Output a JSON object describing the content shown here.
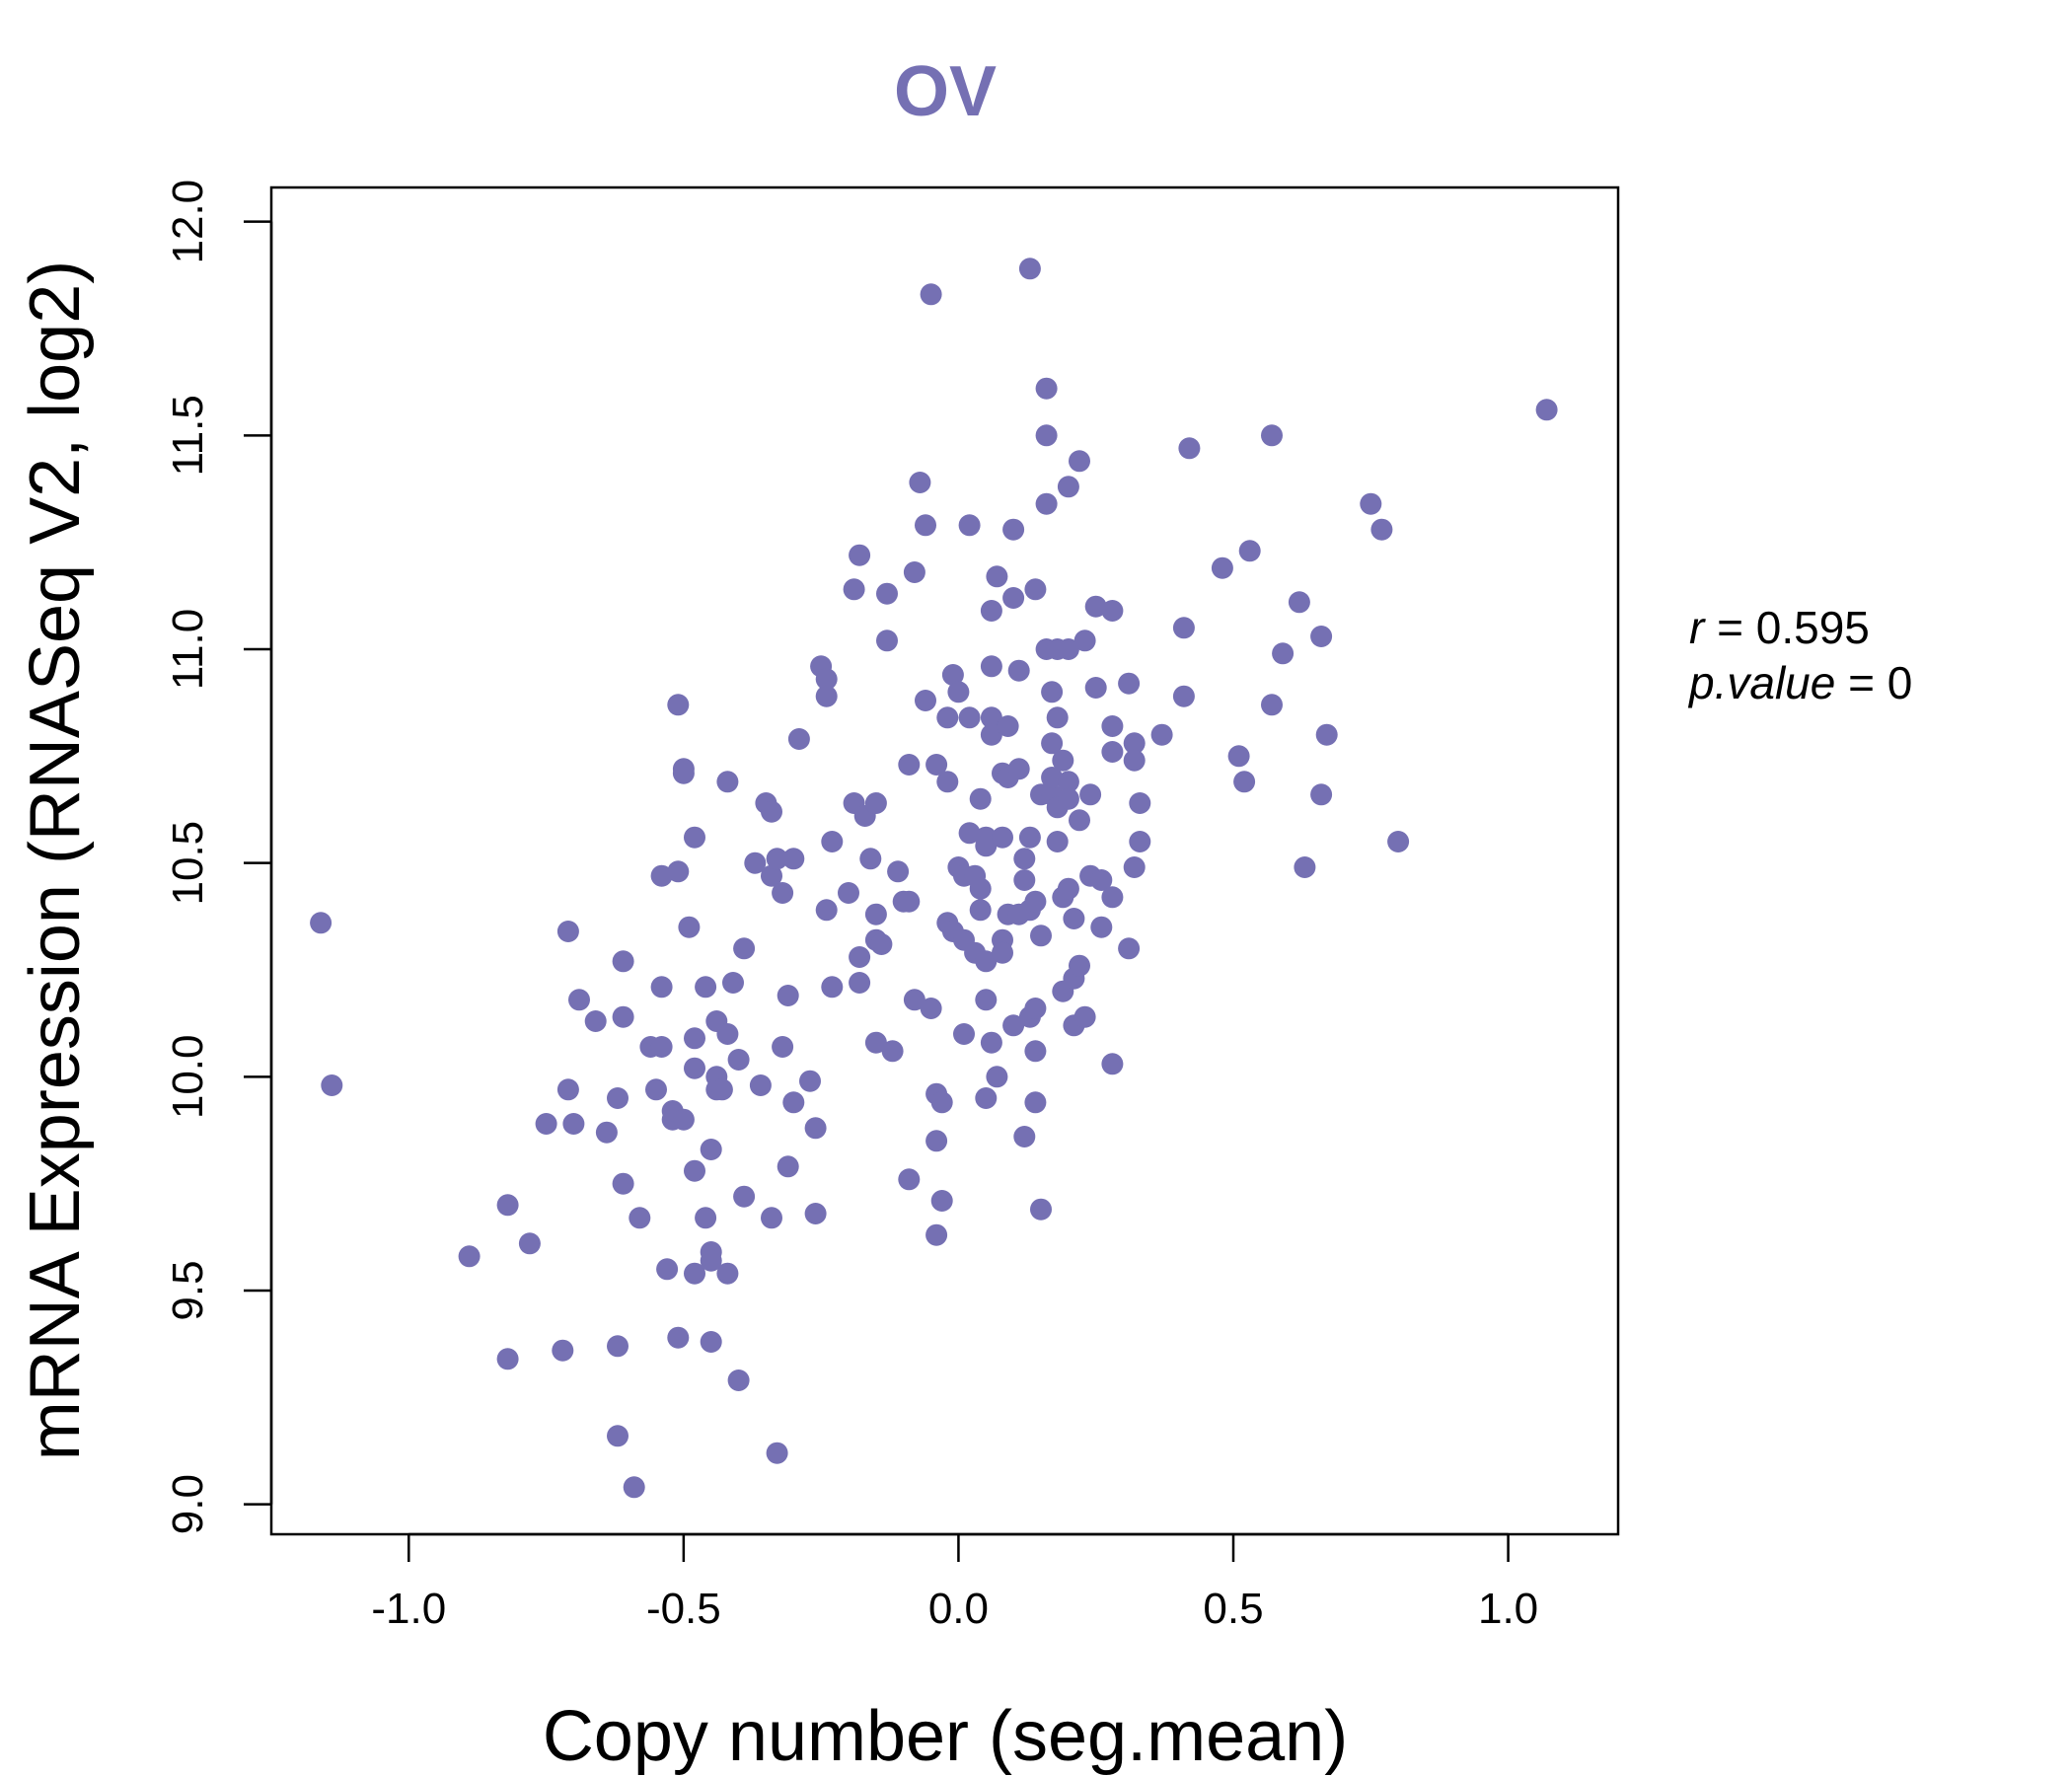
{
  "chart_data": {
    "type": "scatter",
    "title": "OV",
    "xlabel": "Copy number (seg.mean)",
    "ylabel": "mRNA Expression (RNASeq V2, log2)",
    "xlim": [
      -1.25,
      1.2
    ],
    "ylim": [
      8.93,
      12.08
    ],
    "xticks": [
      -1.0,
      -0.5,
      0.0,
      0.5,
      1.0
    ],
    "xtick_labels": [
      "-1.0",
      "-0.5",
      "0.0",
      "0.5",
      "1.0"
    ],
    "yticks": [
      9.0,
      9.5,
      10.0,
      10.5,
      11.0,
      11.5,
      12.0
    ],
    "ytick_labels": [
      "9.0",
      "9.5",
      "10.0",
      "10.5",
      "11.0",
      "11.5",
      "12.0"
    ],
    "stats": {
      "r_label": "r",
      "r_value": "0.595",
      "p_label": "p.value",
      "p_value": "0"
    },
    "color": "#7570b3",
    "points": [
      [
        -1.16,
        10.36
      ],
      [
        -1.14,
        9.98
      ],
      [
        -0.89,
        9.58
      ],
      [
        -0.82,
        9.34
      ],
      [
        -0.82,
        9.7
      ],
      [
        -0.78,
        9.61
      ],
      [
        -0.75,
        9.89
      ],
      [
        -0.72,
        9.36
      ],
      [
        -0.71,
        10.34
      ],
      [
        -0.71,
        9.97
      ],
      [
        -0.7,
        9.89
      ],
      [
        -0.69,
        10.18
      ],
      [
        -0.66,
        10.13
      ],
      [
        -0.64,
        9.87
      ],
      [
        -0.62,
        9.16
      ],
      [
        -0.62,
        9.37
      ],
      [
        -0.62,
        9.95
      ],
      [
        -0.61,
        10.27
      ],
      [
        -0.61,
        10.14
      ],
      [
        -0.61,
        9.75
      ],
      [
        -0.59,
        9.04
      ],
      [
        -0.58,
        9.67
      ],
      [
        -0.56,
        10.07
      ],
      [
        -0.55,
        9.97
      ],
      [
        -0.54,
        10.07
      ],
      [
        -0.54,
        10.21
      ],
      [
        -0.54,
        10.47
      ],
      [
        -0.53,
        9.55
      ],
      [
        -0.52,
        9.9
      ],
      [
        -0.52,
        9.92
      ],
      [
        -0.51,
        9.39
      ],
      [
        -0.51,
        10.87
      ],
      [
        -0.51,
        10.48
      ],
      [
        -0.5,
        10.72
      ],
      [
        -0.5,
        10.71
      ],
      [
        -0.5,
        9.9
      ],
      [
        -0.49,
        10.35
      ],
      [
        -0.48,
        10.56
      ],
      [
        -0.48,
        10.09
      ],
      [
        -0.48,
        10.02
      ],
      [
        -0.48,
        9.78
      ],
      [
        -0.48,
        9.54
      ],
      [
        -0.46,
        10.21
      ],
      [
        -0.46,
        9.67
      ],
      [
        -0.45,
        9.38
      ],
      [
        -0.45,
        9.59
      ],
      [
        -0.45,
        9.57
      ],
      [
        -0.45,
        9.83
      ],
      [
        -0.44,
        10.0
      ],
      [
        -0.44,
        9.97
      ],
      [
        -0.44,
        10.13
      ],
      [
        -0.43,
        9.97
      ],
      [
        -0.42,
        10.1
      ],
      [
        -0.42,
        10.69
      ],
      [
        -0.42,
        9.54
      ],
      [
        -0.41,
        10.22
      ],
      [
        -0.4,
        9.29
      ],
      [
        -0.4,
        10.04
      ],
      [
        -0.39,
        10.3
      ],
      [
        -0.39,
        9.72
      ],
      [
        -0.37,
        10.5
      ],
      [
        -0.36,
        9.98
      ],
      [
        -0.35,
        10.64
      ],
      [
        -0.34,
        10.62
      ],
      [
        -0.34,
        10.47
      ],
      [
        -0.34,
        9.67
      ],
      [
        -0.33,
        9.12
      ],
      [
        -0.33,
        10.51
      ],
      [
        -0.32,
        10.43
      ],
      [
        -0.32,
        10.07
      ],
      [
        -0.31,
        9.79
      ],
      [
        -0.31,
        10.19
      ],
      [
        -0.3,
        10.51
      ],
      [
        -0.3,
        9.94
      ],
      [
        -0.29,
        10.79
      ],
      [
        -0.27,
        9.99
      ],
      [
        -0.26,
        9.88
      ],
      [
        -0.26,
        9.68
      ],
      [
        -0.25,
        10.96
      ],
      [
        -0.24,
        10.93
      ],
      [
        -0.24,
        10.89
      ],
      [
        -0.24,
        10.39
      ],
      [
        -0.23,
        10.55
      ],
      [
        -0.23,
        10.21
      ],
      [
        -0.2,
        10.43
      ],
      [
        -0.19,
        10.64
      ],
      [
        -0.19,
        11.14
      ],
      [
        -0.18,
        10.28
      ],
      [
        -0.18,
        10.22
      ],
      [
        -0.18,
        11.22
      ],
      [
        -0.17,
        10.61
      ],
      [
        -0.16,
        10.51
      ],
      [
        -0.15,
        10.64
      ],
      [
        -0.15,
        10.38
      ],
      [
        -0.15,
        10.32
      ],
      [
        -0.15,
        10.08
      ],
      [
        -0.14,
        10.31
      ],
      [
        -0.13,
        11.02
      ],
      [
        -0.13,
        11.13
      ],
      [
        -0.12,
        10.06
      ],
      [
        -0.11,
        10.48
      ],
      [
        -0.1,
        10.41
      ],
      [
        -0.09,
        10.73
      ],
      [
        -0.09,
        10.41
      ],
      [
        -0.09,
        9.76
      ],
      [
        -0.08,
        11.18
      ],
      [
        -0.08,
        10.18
      ],
      [
        -0.07,
        11.39
      ],
      [
        -0.06,
        10.88
      ],
      [
        -0.06,
        11.29
      ],
      [
        -0.05,
        11.83
      ],
      [
        -0.05,
        10.16
      ],
      [
        -0.04,
        9.96
      ],
      [
        -0.04,
        9.85
      ],
      [
        -0.04,
        9.63
      ],
      [
        -0.04,
        10.73
      ],
      [
        -0.03,
        9.94
      ],
      [
        -0.03,
        9.71
      ],
      [
        -0.02,
        10.84
      ],
      [
        -0.02,
        10.69
      ],
      [
        -0.02,
        10.36
      ],
      [
        -0.01,
        10.94
      ],
      [
        -0.01,
        10.34
      ],
      [
        0.0,
        10.49
      ],
      [
        0.0,
        10.9
      ],
      [
        0.01,
        10.47
      ],
      [
        0.01,
        10.32
      ],
      [
        0.01,
        10.1
      ],
      [
        0.02,
        10.57
      ],
      [
        0.02,
        11.29
      ],
      [
        0.02,
        10.84
      ],
      [
        0.03,
        10.29
      ],
      [
        0.03,
        10.47
      ],
      [
        0.04,
        10.39
      ],
      [
        0.04,
        10.65
      ],
      [
        0.04,
        10.44
      ],
      [
        0.05,
        10.56
      ],
      [
        0.05,
        10.54
      ],
      [
        0.05,
        10.27
      ],
      [
        0.05,
        10.18
      ],
      [
        0.05,
        9.95
      ],
      [
        0.06,
        10.84
      ],
      [
        0.06,
        10.8
      ],
      [
        0.06,
        11.09
      ],
      [
        0.06,
        10.96
      ],
      [
        0.06,
        10.08
      ],
      [
        0.07,
        10.0
      ],
      [
        0.07,
        11.17
      ],
      [
        0.08,
        10.71
      ],
      [
        0.08,
        10.56
      ],
      [
        0.08,
        10.32
      ],
      [
        0.08,
        10.29
      ],
      [
        0.09,
        10.38
      ],
      [
        0.09,
        10.82
      ],
      [
        0.09,
        10.7
      ],
      [
        0.1,
        11.28
      ],
      [
        0.1,
        10.12
      ],
      [
        0.1,
        11.12
      ],
      [
        0.11,
        10.95
      ],
      [
        0.11,
        10.72
      ],
      [
        0.11,
        10.38
      ],
      [
        0.12,
        10.51
      ],
      [
        0.12,
        10.46
      ],
      [
        0.12,
        9.86
      ],
      [
        0.13,
        11.89
      ],
      [
        0.13,
        10.56
      ],
      [
        0.13,
        10.39
      ],
      [
        0.13,
        10.14
      ],
      [
        0.14,
        10.41
      ],
      [
        0.14,
        11.14
      ],
      [
        0.14,
        10.16
      ],
      [
        0.14,
        10.06
      ],
      [
        0.14,
        9.94
      ],
      [
        0.15,
        10.66
      ],
      [
        0.15,
        10.33
      ],
      [
        0.15,
        9.69
      ],
      [
        0.16,
        11.61
      ],
      [
        0.16,
        11.34
      ],
      [
        0.16,
        11.5
      ],
      [
        0.16,
        11.0
      ],
      [
        0.17,
        10.9
      ],
      [
        0.17,
        10.78
      ],
      [
        0.17,
        10.66
      ],
      [
        0.17,
        10.7
      ],
      [
        0.18,
        10.84
      ],
      [
        0.18,
        10.63
      ],
      [
        0.18,
        10.55
      ],
      [
        0.18,
        11.0
      ],
      [
        0.19,
        10.74
      ],
      [
        0.19,
        10.42
      ],
      [
        0.19,
        10.2
      ],
      [
        0.2,
        11.38
      ],
      [
        0.2,
        11.0
      ],
      [
        0.2,
        10.69
      ],
      [
        0.2,
        10.65
      ],
      [
        0.2,
        10.44
      ],
      [
        0.21,
        10.37
      ],
      [
        0.21,
        10.23
      ],
      [
        0.21,
        10.12
      ],
      [
        0.22,
        11.44
      ],
      [
        0.22,
        10.26
      ],
      [
        0.22,
        10.6
      ],
      [
        0.23,
        10.14
      ],
      [
        0.23,
        11.02
      ],
      [
        0.24,
        10.66
      ],
      [
        0.24,
        10.47
      ],
      [
        0.25,
        11.1
      ],
      [
        0.25,
        10.91
      ],
      [
        0.26,
        10.46
      ],
      [
        0.26,
        10.35
      ],
      [
        0.28,
        11.09
      ],
      [
        0.28,
        10.82
      ],
      [
        0.28,
        10.76
      ],
      [
        0.28,
        10.42
      ],
      [
        0.28,
        10.03
      ],
      [
        0.31,
        10.92
      ],
      [
        0.31,
        10.3
      ],
      [
        0.32,
        10.78
      ],
      [
        0.32,
        10.74
      ],
      [
        0.32,
        10.49
      ],
      [
        0.33,
        10.55
      ],
      [
        0.33,
        10.64
      ],
      [
        0.37,
        10.8
      ],
      [
        0.41,
        10.89
      ],
      [
        0.41,
        11.05
      ],
      [
        0.42,
        11.47
      ],
      [
        0.48,
        11.19
      ],
      [
        0.51,
        10.75
      ],
      [
        0.52,
        10.69
      ],
      [
        0.53,
        11.23
      ],
      [
        0.57,
        11.5
      ],
      [
        0.57,
        10.87
      ],
      [
        0.59,
        10.99
      ],
      [
        0.62,
        11.11
      ],
      [
        0.63,
        10.49
      ],
      [
        0.66,
        11.03
      ],
      [
        0.66,
        10.66
      ],
      [
        0.67,
        10.8
      ],
      [
        0.75,
        11.34
      ],
      [
        0.77,
        11.28
      ],
      [
        0.8,
        10.55
      ],
      [
        1.07,
        11.56
      ]
    ]
  }
}
